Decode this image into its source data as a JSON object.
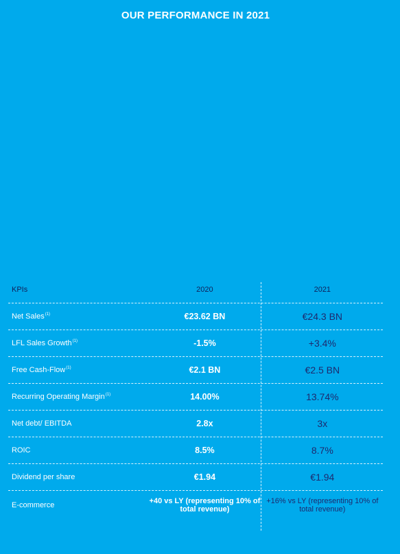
{
  "title": "OUR PERFORMANCE IN 2021",
  "table": {
    "headers": [
      "KPIs",
      "2020",
      "2021"
    ],
    "rows": [
      {
        "kpi": "Net Sales",
        "note": "(1)",
        "y2020": "€23.62 BN",
        "y2021": "€24.3 BN"
      },
      {
        "kpi": "LFL Sales Growth",
        "note": "(1)",
        "y2020": "-1.5%",
        "y2021": "+3.4%"
      },
      {
        "kpi": "Free Cash-Flow",
        "note": "(1)",
        "y2020": "€2.1 BN",
        "y2021": "€2.5 BN"
      },
      {
        "kpi": "Recurring Operating Margin",
        "note": "(1)",
        "y2020": "14.00%",
        "y2021": "13.74%"
      },
      {
        "kpi": "Net debt/ EBITDA",
        "note": "",
        "y2020": "2.8x",
        "y2021": "3x"
      },
      {
        "kpi": "ROIC",
        "note": "",
        "y2020": "8.5%",
        "y2021": "8.7%"
      },
      {
        "kpi": "Dividend per share",
        "note": "",
        "y2020": "€1.94",
        "y2021": "€1.94"
      },
      {
        "kpi": "E-commerce",
        "note": "",
        "y2020": "+40 vs LY (representing 10% of total revenue)",
        "y2021": "+16% vs LY (representing 10% of total revenue)"
      }
    ]
  }
}
